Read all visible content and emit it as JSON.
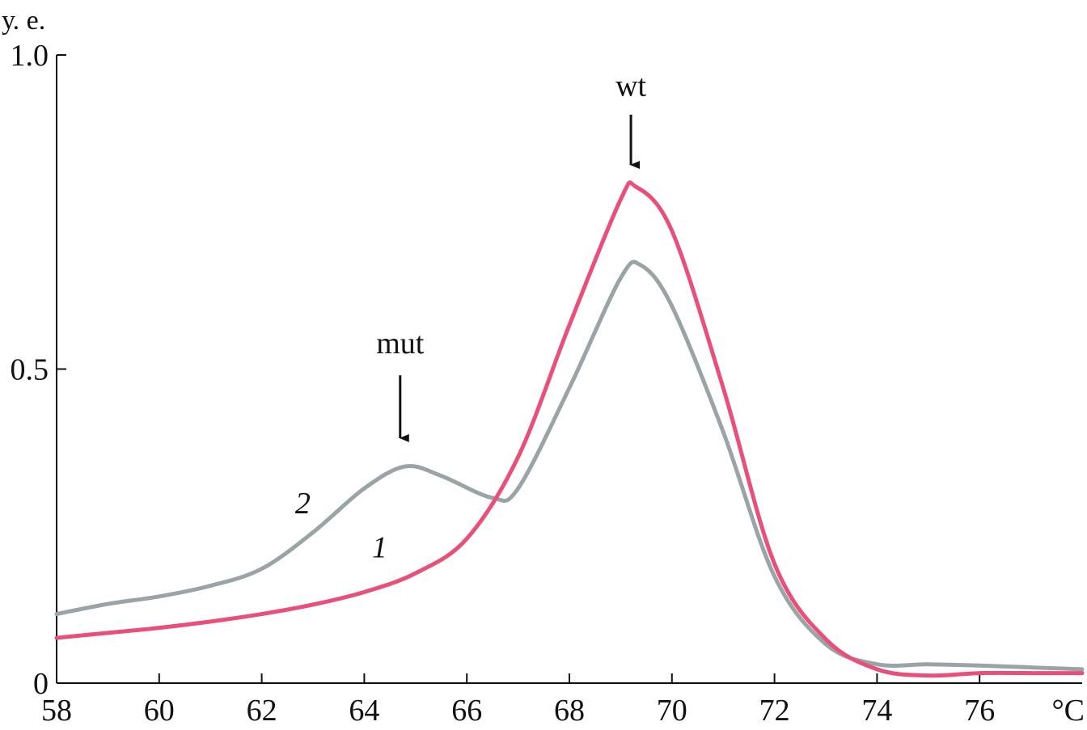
{
  "chart_data": {
    "type": "line",
    "ylabel": "у. е.",
    "xunit": "°C",
    "xlim": [
      58,
      78
    ],
    "ylim": [
      0,
      1.0
    ],
    "xticks": [
      58,
      60,
      62,
      64,
      66,
      68,
      70,
      72,
      74,
      76
    ],
    "yticks": [
      {
        "value": 0,
        "label": "0"
      },
      {
        "value": 0.5,
        "label": "0.5"
      },
      {
        "value": 1.0,
        "label": "1.0"
      }
    ],
    "grid": false,
    "series": [
      {
        "name": "1",
        "color": "#e8507a",
        "points": [
          [
            58,
            0.072
          ],
          [
            59,
            0.08
          ],
          [
            60,
            0.088
          ],
          [
            61,
            0.098
          ],
          [
            62,
            0.11
          ],
          [
            63,
            0.125
          ],
          [
            64,
            0.145
          ],
          [
            65,
            0.175
          ],
          [
            66,
            0.23
          ],
          [
            67,
            0.36
          ],
          [
            68,
            0.57
          ],
          [
            69,
            0.77
          ],
          [
            69.3,
            0.79
          ],
          [
            70,
            0.72
          ],
          [
            71,
            0.47
          ],
          [
            72,
            0.19
          ],
          [
            73,
            0.07
          ],
          [
            74,
            0.022
          ],
          [
            75,
            0.012
          ],
          [
            76,
            0.016
          ],
          [
            77,
            0.016
          ],
          [
            78,
            0.016
          ]
        ]
      },
      {
        "name": "2",
        "color": "#9aa3a6",
        "points": [
          [
            58,
            0.11
          ],
          [
            59,
            0.126
          ],
          [
            60,
            0.138
          ],
          [
            61,
            0.155
          ],
          [
            62,
            0.182
          ],
          [
            63,
            0.24
          ],
          [
            64,
            0.31
          ],
          [
            64.8,
            0.345
          ],
          [
            65.5,
            0.33
          ],
          [
            66.5,
            0.295
          ],
          [
            67,
            0.31
          ],
          [
            68,
            0.47
          ],
          [
            69,
            0.645
          ],
          [
            69.4,
            0.665
          ],
          [
            70,
            0.6
          ],
          [
            71,
            0.4
          ],
          [
            72,
            0.17
          ],
          [
            73,
            0.062
          ],
          [
            74,
            0.03
          ],
          [
            75,
            0.03
          ],
          [
            76,
            0.028
          ],
          [
            77,
            0.025
          ],
          [
            78,
            0.022
          ]
        ]
      }
    ],
    "annotations": [
      {
        "text": "wt",
        "x": 69.2,
        "y_text": 0.935,
        "arrow_from": 0.905,
        "arrow_to": 0.825
      },
      {
        "text": "mut",
        "x": 64.7,
        "y_text": 0.525,
        "arrow_from": 0.49,
        "arrow_to": 0.39
      }
    ],
    "series_labels": [
      {
        "text": "2",
        "x": 62.8,
        "y": 0.27
      },
      {
        "text": "1",
        "x": 64.3,
        "y": 0.2
      }
    ]
  }
}
